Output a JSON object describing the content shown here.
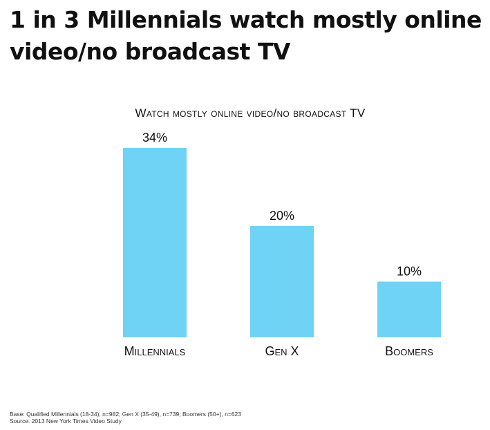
{
  "slide": {
    "title": "1 in 3 Millennials watch mostly online video/no broadcast TV",
    "footnotes": {
      "base": "Base: Qualified Millennials (18-34), n=982; Gen X (35-49), n=739; Boomers (50+), n=623",
      "source": "Source: 2013 New York Times Video Study"
    }
  },
  "chart_data": {
    "type": "bar",
    "title": "Watch mostly online video/no broadcast TV",
    "categories": [
      "Millennials",
      "Gen X",
      "Boomers"
    ],
    "values": [
      34,
      20,
      10
    ],
    "value_labels": [
      "34%",
      "20%",
      "10%"
    ],
    "unit": "%",
    "ylim": [
      0,
      34
    ],
    "grid": false,
    "legend": "none",
    "colors": {
      "bar": "#6fd3f5"
    }
  }
}
